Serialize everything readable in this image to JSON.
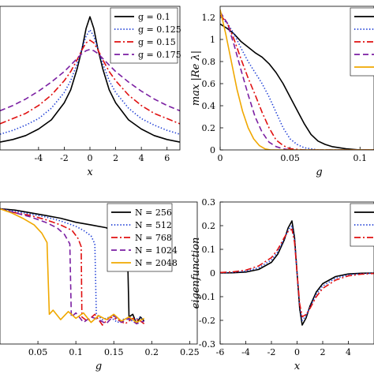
{
  "chart_data": [
    {
      "panel": "top-left",
      "type": "line",
      "xlabel": "x",
      "ylabel": "",
      "xlim": [
        -7,
        7
      ],
      "ylim": [
        0,
        1.1
      ],
      "x_ticks": [
        "-4",
        "-2",
        "0",
        "2",
        "4",
        "6"
      ],
      "x_tick_values": [
        -4,
        -2,
        0,
        2,
        4,
        6
      ],
      "legend_position": "top-right",
      "series": [
        {
          "name": "g = 0.1",
          "style": "solid",
          "color": "#000000",
          "x": [
            -7,
            -6,
            -5,
            -4,
            -3,
            -2,
            -1.5,
            -1,
            -0.6,
            -0.3,
            0,
            0.3,
            0.6,
            1,
            1.5,
            2,
            3,
            4,
            5,
            6,
            7
          ],
          "y": [
            0.06,
            0.08,
            0.11,
            0.16,
            0.23,
            0.36,
            0.46,
            0.62,
            0.78,
            0.93,
            1.02,
            0.93,
            0.78,
            0.62,
            0.46,
            0.36,
            0.23,
            0.16,
            0.11,
            0.08,
            0.06
          ]
        },
        {
          "name": "g = 0.125",
          "style": "dotted",
          "color": "#1f3fd6",
          "x": [
            -7,
            -6,
            -5,
            -4,
            -3,
            -2,
            -1.5,
            -1,
            -0.6,
            -0.3,
            0,
            0.3,
            0.6,
            1,
            1.5,
            2,
            3,
            4,
            5,
            6,
            7
          ],
          "y": [
            0.12,
            0.15,
            0.19,
            0.24,
            0.32,
            0.44,
            0.53,
            0.66,
            0.78,
            0.87,
            0.92,
            0.87,
            0.78,
            0.66,
            0.53,
            0.44,
            0.32,
            0.24,
            0.19,
            0.15,
            0.12
          ]
        },
        {
          "name": "g = 0.15",
          "style": "dashdot",
          "color": "#e01010",
          "x": [
            -7,
            -6,
            -5,
            -4,
            -3,
            -2,
            -1.5,
            -1,
            -0.6,
            -0.3,
            0,
            0.3,
            0.6,
            1,
            1.5,
            2,
            3,
            4,
            5,
            6,
            7
          ],
          "y": [
            0.2,
            0.24,
            0.28,
            0.34,
            0.42,
            0.53,
            0.6,
            0.69,
            0.77,
            0.82,
            0.84,
            0.82,
            0.77,
            0.69,
            0.6,
            0.53,
            0.42,
            0.34,
            0.28,
            0.24,
            0.2
          ]
        },
        {
          "name": "g = 0.175",
          "style": "dashed",
          "color": "#7b1fa2",
          "x": [
            -7,
            -6,
            -5,
            -4,
            -3,
            -2,
            -1.5,
            -1,
            -0.6,
            -0.3,
            0,
            0.3,
            0.6,
            1,
            1.5,
            2,
            3,
            4,
            5,
            6,
            7
          ],
          "y": [
            0.3,
            0.34,
            0.39,
            0.45,
            0.52,
            0.6,
            0.65,
            0.7,
            0.74,
            0.76,
            0.77,
            0.76,
            0.74,
            0.7,
            0.65,
            0.6,
            0.52,
            0.45,
            0.39,
            0.34,
            0.3
          ]
        }
      ]
    },
    {
      "panel": "top-right",
      "type": "line",
      "xlabel": "g",
      "ylabel": "max |Re λ|",
      "xlim": [
        0,
        0.11
      ],
      "ylim": [
        0,
        1.3
      ],
      "x_ticks": [
        "0",
        "0.05",
        "0.1"
      ],
      "x_tick_values": [
        0,
        0.05,
        0.1
      ],
      "y_ticks": [
        "0",
        "0.2",
        "0.4",
        "0.6",
        "0.8",
        "1",
        "1.2"
      ],
      "y_tick_values": [
        0,
        0.2,
        0.4,
        0.6,
        0.8,
        1,
        1.2
      ],
      "legend_position": "top-right",
      "series": [
        {
          "style": "solid",
          "color": "#000000",
          "x": [
            0,
            0.005,
            0.01,
            0.015,
            0.02,
            0.025,
            0.03,
            0.035,
            0.04,
            0.045,
            0.05,
            0.055,
            0.06,
            0.065,
            0.07,
            0.075,
            0.08,
            0.085,
            0.09,
            0.1,
            0.11
          ],
          "y": [
            1.14,
            1.1,
            1.05,
            0.98,
            0.93,
            0.88,
            0.84,
            0.78,
            0.7,
            0.6,
            0.48,
            0.36,
            0.24,
            0.14,
            0.08,
            0.05,
            0.03,
            0.02,
            0.01,
            0.0,
            0.0
          ]
        },
        {
          "style": "dotted",
          "color": "#1f3fd6",
          "x": [
            0,
            0.005,
            0.01,
            0.015,
            0.02,
            0.025,
            0.03,
            0.035,
            0.04,
            0.045,
            0.05,
            0.055,
            0.06,
            0.065,
            0.07,
            0.08,
            0.11
          ],
          "y": [
            1.2,
            1.15,
            1.05,
            0.92,
            0.8,
            0.7,
            0.6,
            0.48,
            0.34,
            0.2,
            0.1,
            0.05,
            0.02,
            0.01,
            0.0,
            0.0,
            0.0
          ]
        },
        {
          "style": "dashdot",
          "color": "#e01010",
          "x": [
            0,
            0.005,
            0.01,
            0.015,
            0.02,
            0.025,
            0.03,
            0.035,
            0.04,
            0.045,
            0.05,
            0.06,
            0.11
          ],
          "y": [
            1.22,
            1.15,
            1.0,
            0.82,
            0.65,
            0.5,
            0.34,
            0.2,
            0.09,
            0.04,
            0.01,
            0.0,
            0.0
          ]
        },
        {
          "style": "dashed",
          "color": "#7b1fa2",
          "x": [
            0,
            0.005,
            0.01,
            0.015,
            0.02,
            0.025,
            0.03,
            0.035,
            0.04,
            0.045,
            0.05,
            0.11
          ],
          "y": [
            1.25,
            1.15,
            0.95,
            0.72,
            0.5,
            0.3,
            0.16,
            0.07,
            0.03,
            0.01,
            0.0,
            0.0
          ]
        },
        {
          "style": "solid",
          "color": "#f0a800",
          "x": [
            0,
            0.004,
            0.008,
            0.012,
            0.016,
            0.02,
            0.024,
            0.028,
            0.032,
            0.036,
            0.04,
            0.11
          ],
          "y": [
            1.27,
            1.05,
            0.8,
            0.55,
            0.35,
            0.2,
            0.1,
            0.04,
            0.01,
            0.0,
            0.0,
            0.0
          ]
        }
      ]
    },
    {
      "panel": "bottom-left",
      "type": "line",
      "xlabel": "g",
      "ylabel": "",
      "xlim": [
        0,
        0.26
      ],
      "ylim": [
        0,
        1.05
      ],
      "x_ticks": [
        "0.05",
        "0.1",
        "0.15",
        "0.2",
        "0.25"
      ],
      "x_tick_values": [
        0.05,
        0.1,
        0.15,
        0.2,
        0.25
      ],
      "legend_position": "top-right",
      "series": [
        {
          "name": "N = 256",
          "style": "solid",
          "color": "#000000",
          "x": [
            0,
            0.02,
            0.04,
            0.06,
            0.08,
            0.1,
            0.12,
            0.14,
            0.155,
            0.163,
            0.168,
            0.17,
            0.175,
            0.18,
            0.185,
            0.19
          ],
          "y": [
            1.0,
            0.99,
            0.97,
            0.95,
            0.93,
            0.9,
            0.88,
            0.86,
            0.82,
            0.76,
            0.72,
            0.2,
            0.22,
            0.15,
            0.2,
            0.17
          ]
        },
        {
          "name": "N = 512",
          "style": "dotted",
          "color": "#1f3fd6",
          "x": [
            0,
            0.02,
            0.04,
            0.06,
            0.08,
            0.1,
            0.11,
            0.12,
            0.125,
            0.127,
            0.135,
            0.145,
            0.155,
            0.165,
            0.175,
            0.185,
            0.19
          ],
          "y": [
            1.0,
            0.98,
            0.96,
            0.94,
            0.91,
            0.87,
            0.84,
            0.8,
            0.74,
            0.22,
            0.18,
            0.2,
            0.16,
            0.19,
            0.17,
            0.2,
            0.16
          ]
        },
        {
          "name": "N = 768",
          "style": "dashdot",
          "color": "#e01010",
          "x": [
            0,
            0.02,
            0.04,
            0.06,
            0.08,
            0.095,
            0.103,
            0.107,
            0.108,
            0.115,
            0.125,
            0.135,
            0.145,
            0.155,
            0.165,
            0.175,
            0.185,
            0.19
          ],
          "y": [
            1.0,
            0.97,
            0.95,
            0.92,
            0.88,
            0.84,
            0.78,
            0.72,
            0.2,
            0.17,
            0.22,
            0.14,
            0.2,
            0.18,
            0.15,
            0.19,
            0.17,
            0.15
          ]
        },
        {
          "name": "N = 1024",
          "style": "dashed",
          "color": "#7b1fa2",
          "x": [
            0,
            0.02,
            0.04,
            0.06,
            0.075,
            0.085,
            0.092,
            0.094,
            0.1,
            0.11,
            0.12,
            0.13,
            0.14,
            0.15,
            0.16,
            0.17,
            0.18,
            0.19
          ],
          "y": [
            1.0,
            0.97,
            0.94,
            0.9,
            0.86,
            0.81,
            0.74,
            0.2,
            0.23,
            0.16,
            0.2,
            0.18,
            0.15,
            0.21,
            0.16,
            0.19,
            0.15,
            0.17
          ]
        },
        {
          "name": "N = 2048",
          "style": "solid",
          "color": "#f0a800",
          "x": [
            0,
            0.015,
            0.03,
            0.045,
            0.055,
            0.062,
            0.065,
            0.07,
            0.08,
            0.09,
            0.1,
            0.11,
            0.12,
            0.13,
            0.14,
            0.15,
            0.16,
            0.17,
            0.18,
            0.19
          ],
          "y": [
            1.0,
            0.97,
            0.93,
            0.88,
            0.82,
            0.75,
            0.22,
            0.25,
            0.18,
            0.24,
            0.19,
            0.23,
            0.16,
            0.21,
            0.18,
            0.22,
            0.17,
            0.2,
            0.16,
            0.19
          ]
        }
      ]
    },
    {
      "panel": "bottom-right",
      "type": "line",
      "xlabel": "x",
      "ylabel": "eigenfunction",
      "xlim": [
        -6,
        6
      ],
      "ylim": [
        -0.3,
        0.3
      ],
      "x_ticks": [
        "-6",
        "-4",
        "-2",
        "0",
        "2",
        "4"
      ],
      "x_tick_values": [
        -6,
        -4,
        -2,
        0,
        2,
        4
      ],
      "y_ticks": [
        "-0.3",
        "-0.2",
        "-0.1",
        "0",
        "0.1",
        "0.2",
        "0.3"
      ],
      "y_tick_values": [
        -0.3,
        -0.2,
        -0.1,
        0,
        0.1,
        0.2,
        0.3
      ],
      "legend_position": "top-right",
      "series": [
        {
          "style": "solid",
          "color": "#000000",
          "x": [
            -6,
            -5,
            -4,
            -3,
            -2,
            -1.5,
            -1,
            -0.7,
            -0.4,
            -0.2,
            0,
            0.2,
            0.4,
            0.7,
            1,
            1.5,
            2,
            3,
            4,
            5,
            6
          ],
          "y": [
            0.0,
            0.001,
            0.004,
            0.015,
            0.045,
            0.08,
            0.14,
            0.19,
            0.22,
            0.15,
            0.0,
            -0.15,
            -0.22,
            -0.19,
            -0.14,
            -0.08,
            -0.045,
            -0.015,
            -0.004,
            -0.001,
            0.0
          ]
        },
        {
          "style": "dotted",
          "color": "#1f3fd6",
          "x": [
            -6,
            -5,
            -4,
            -3,
            -2,
            -1.5,
            -1,
            -0.7,
            -0.4,
            -0.2,
            0,
            0.2,
            0.4,
            0.7,
            1,
            1.5,
            2,
            3,
            4,
            5,
            6
          ],
          "y": [
            0.001,
            0.003,
            0.008,
            0.022,
            0.055,
            0.09,
            0.145,
            0.18,
            0.2,
            0.14,
            0.0,
            -0.14,
            -0.2,
            -0.18,
            -0.145,
            -0.09,
            -0.055,
            -0.022,
            -0.008,
            -0.003,
            -0.001
          ]
        },
        {
          "style": "dashdot",
          "color": "#e01010",
          "x": [
            -6,
            -5,
            -4,
            -3,
            -2,
            -1.5,
            -1,
            -0.7,
            -0.4,
            -0.2,
            0,
            0.2,
            0.4,
            0.7,
            1,
            1.5,
            2,
            3,
            4,
            5,
            6
          ],
          "y": [
            0.002,
            0.005,
            0.012,
            0.03,
            0.065,
            0.1,
            0.15,
            0.175,
            0.185,
            0.13,
            0.0,
            -0.13,
            -0.185,
            -0.175,
            -0.15,
            -0.1,
            -0.065,
            -0.03,
            -0.012,
            -0.005,
            -0.002
          ]
        }
      ]
    }
  ]
}
